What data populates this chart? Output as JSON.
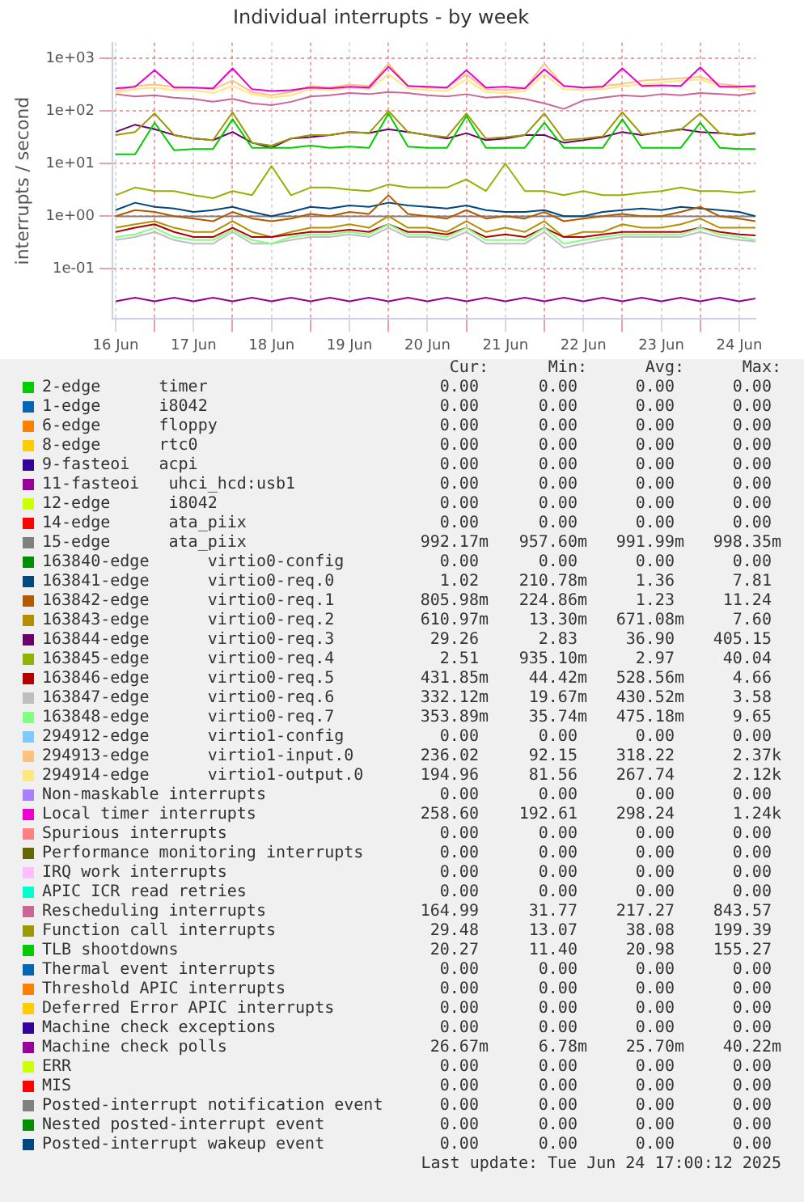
{
  "chart_data": {
    "type": "line",
    "title": "Individual interrupts - by week",
    "ylabel": "interrupts / second",
    "log": "y",
    "grid": true,
    "legend": "bottom",
    "marker": "none",
    "xlim": [
      "2025-06-16T11:00",
      "2025-06-24T17:00"
    ],
    "xticks": [
      {
        "value": "2025-06-16T12:00",
        "label": "16 Jun"
      },
      {
        "value": "2025-06-17T00:00",
        "label": null
      },
      {
        "value": "2025-06-17T12:00",
        "label": "17 Jun"
      },
      {
        "value": "2025-06-18T00:00",
        "label": null
      },
      {
        "value": "2025-06-18T12:00",
        "label": "18 Jun"
      },
      {
        "value": "2025-06-19T00:00",
        "label": null
      },
      {
        "value": "2025-06-19T12:00",
        "label": "19 Jun"
      },
      {
        "value": "2025-06-20T00:00",
        "label": null
      },
      {
        "value": "2025-06-20T12:00",
        "label": "20 Jun"
      },
      {
        "value": "2025-06-21T00:00",
        "label": null
      },
      {
        "value": "2025-06-21T12:00",
        "label": "21 Jun"
      },
      {
        "value": "2025-06-22T00:00",
        "label": null
      },
      {
        "value": "2025-06-22T12:00",
        "label": "22 Jun"
      },
      {
        "value": "2025-06-23T00:00",
        "label": null
      },
      {
        "value": "2025-06-23T12:00",
        "label": "23 Jun"
      },
      {
        "value": "2025-06-24T00:00",
        "label": null
      },
      {
        "value": "2025-06-24T12:00",
        "label": "24 Jun"
      }
    ],
    "ylim": [
      0.011,
      2000
    ],
    "yticks": [
      {
        "value": 1000,
        "label": "1e+03"
      },
      {
        "value": 100,
        "label": "1e+02"
      },
      {
        "value": 10,
        "label": "1e+01"
      },
      {
        "value": 1,
        "label": "1e+00"
      },
      {
        "value": 0.1,
        "label": "1e-01"
      }
    ],
    "x": [
      "2025-06-16T12:00",
      "2025-06-16T18:00",
      "2025-06-17T00:00",
      "2025-06-17T06:00",
      "2025-06-17T12:00",
      "2025-06-17T18:00",
      "2025-06-18T00:00",
      "2025-06-18T06:00",
      "2025-06-18T12:00",
      "2025-06-18T18:00",
      "2025-06-19T00:00",
      "2025-06-19T06:00",
      "2025-06-19T12:00",
      "2025-06-19T18:00",
      "2025-06-20T00:00",
      "2025-06-20T06:00",
      "2025-06-20T12:00",
      "2025-06-20T18:00",
      "2025-06-21T00:00",
      "2025-06-21T06:00",
      "2025-06-21T12:00",
      "2025-06-21T18:00",
      "2025-06-22T00:00",
      "2025-06-22T06:00",
      "2025-06-22T12:00",
      "2025-06-22T18:00",
      "2025-06-23T00:00",
      "2025-06-23T06:00",
      "2025-06-23T12:00",
      "2025-06-23T18:00",
      "2025-06-24T00:00",
      "2025-06-24T06:00",
      "2025-06-24T12:00",
      "2025-06-24T17:00"
    ],
    "series": [
      {
        "name": "2-edge      timer",
        "color": "#00cc00",
        "values": [
          null,
          null,
          null,
          null,
          null,
          null,
          null,
          null,
          null,
          null,
          null,
          null,
          null,
          null,
          null,
          null,
          null,
          null,
          null,
          null,
          null,
          null,
          null,
          null,
          null,
          null,
          null,
          null,
          null,
          null,
          null,
          null,
          null,
          null
        ]
      },
      {
        "name": "1-edge      i8042",
        "color": "#0066b3",
        "values": [
          null,
          null,
          null,
          null,
          null,
          null,
          null,
          null,
          null,
          null,
          null,
          null,
          null,
          null,
          null,
          null,
          null,
          null,
          null,
          null,
          null,
          null,
          null,
          null,
          null,
          null,
          null,
          null,
          null,
          null,
          null,
          null,
          null,
          null
        ]
      },
      {
        "name": "6-edge      floppy",
        "color": "#ff8000",
        "values": [
          null,
          null,
          null,
          null,
          null,
          null,
          null,
          null,
          null,
          null,
          null,
          null,
          null,
          null,
          null,
          null,
          null,
          null,
          null,
          null,
          null,
          null,
          null,
          null,
          null,
          null,
          null,
          null,
          null,
          null,
          null,
          null,
          null,
          null
        ]
      },
      {
        "name": "8-edge      rtc0",
        "color": "#ffcc00",
        "values": [
          null,
          null,
          null,
          null,
          null,
          null,
          null,
          null,
          null,
          null,
          null,
          null,
          null,
          null,
          null,
          null,
          null,
          null,
          null,
          null,
          null,
          null,
          null,
          null,
          null,
          null,
          null,
          null,
          null,
          null,
          null,
          null,
          null,
          null
        ]
      },
      {
        "name": "9-fasteoi   acpi",
        "color": "#330099",
        "values": [
          null,
          null,
          null,
          null,
          null,
          null,
          null,
          null,
          null,
          null,
          null,
          null,
          null,
          null,
          null,
          null,
          null,
          null,
          null,
          null,
          null,
          null,
          null,
          null,
          null,
          null,
          null,
          null,
          null,
          null,
          null,
          null,
          null,
          null
        ]
      },
      {
        "name": "11-fasteoi   uhci_hcd:usb1",
        "color": "#990099",
        "values": [
          null,
          null,
          null,
          null,
          null,
          null,
          null,
          null,
          null,
          null,
          null,
          null,
          null,
          null,
          null,
          null,
          null,
          null,
          null,
          null,
          null,
          null,
          null,
          null,
          null,
          null,
          null,
          null,
          null,
          null,
          null,
          null,
          null,
          null
        ]
      },
      {
        "name": "12-edge      i8042",
        "color": "#ccff00",
        "values": [
          null,
          null,
          null,
          null,
          null,
          null,
          null,
          null,
          null,
          null,
          null,
          null,
          null,
          null,
          null,
          null,
          null,
          null,
          null,
          null,
          null,
          null,
          null,
          null,
          null,
          null,
          null,
          null,
          null,
          null,
          null,
          null,
          null,
          null
        ]
      },
      {
        "name": "14-edge      ata_piix",
        "color": "#ff0000",
        "values": [
          null,
          null,
          null,
          null,
          null,
          null,
          null,
          null,
          null,
          null,
          null,
          null,
          null,
          null,
          null,
          null,
          null,
          null,
          null,
          null,
          null,
          null,
          null,
          null,
          null,
          null,
          null,
          null,
          null,
          null,
          null,
          null,
          null,
          null
        ]
      },
      {
        "name": "15-edge      ata_piix",
        "color": "#808080",
        "values": [
          0.99,
          0.99,
          0.99,
          0.99,
          0.99,
          0.99,
          0.99,
          0.99,
          0.99,
          0.99,
          0.99,
          0.99,
          0.99,
          0.99,
          0.99,
          0.99,
          0.99,
          0.99,
          0.99,
          0.99,
          0.99,
          0.99,
          0.99,
          0.99,
          0.99,
          0.99,
          0.99,
          0.99,
          0.99,
          0.99,
          0.99,
          0.99,
          0.99,
          0.99
        ]
      },
      {
        "name": "163840-edge      virtio0-config",
        "color": "#008f00",
        "values": [
          null,
          null,
          null,
          null,
          null,
          null,
          null,
          null,
          null,
          null,
          null,
          null,
          null,
          null,
          null,
          null,
          null,
          null,
          null,
          null,
          null,
          null,
          null,
          null,
          null,
          null,
          null,
          null,
          null,
          null,
          null,
          null,
          null,
          null
        ]
      },
      {
        "name": "163841-edge      virtio0-req.0",
        "color": "#00487d",
        "values": [
          1.3,
          1.8,
          1.5,
          1.4,
          1.2,
          1.3,
          1.5,
          1.2,
          1.0,
          1.2,
          1.5,
          1.4,
          1.6,
          1.5,
          1.8,
          1.6,
          1.5,
          1.4,
          1.6,
          1.3,
          1.2,
          1.2,
          1.3,
          1.0,
          1.0,
          1.2,
          1.3,
          1.4,
          1.3,
          1.5,
          1.4,
          1.3,
          1.2,
          1.0
        ]
      },
      {
        "name": "163842-edge      virtio0-req.1",
        "color": "#b35a00",
        "values": [
          1.0,
          1.3,
          1.2,
          1.0,
          0.9,
          0.8,
          1.2,
          0.9,
          0.8,
          0.9,
          1.1,
          1.0,
          1.2,
          1.1,
          2.5,
          1.1,
          1.0,
          0.9,
          1.3,
          0.9,
          1.0,
          0.9,
          1.2,
          0.8,
          0.9,
          1.0,
          1.1,
          1.0,
          1.0,
          1.2,
          1.5,
          1.0,
          0.9,
          0.8
        ]
      },
      {
        "name": "163843-edge      virtio0-req.2",
        "color": "#b38f00",
        "values": [
          0.6,
          0.7,
          0.8,
          0.6,
          0.5,
          0.5,
          0.8,
          0.5,
          0.4,
          0.5,
          0.6,
          0.6,
          0.7,
          0.6,
          1.0,
          0.6,
          0.6,
          0.5,
          0.8,
          0.5,
          0.6,
          0.5,
          0.8,
          0.4,
          0.5,
          0.5,
          0.7,
          0.6,
          0.6,
          0.7,
          0.9,
          0.6,
          0.6,
          0.6
        ]
      },
      {
        "name": "163844-edge      virtio0-req.3",
        "color": "#6b006b",
        "values": [
          40,
          55,
          45,
          35,
          30,
          28,
          40,
          25,
          20,
          30,
          32,
          35,
          40,
          38,
          45,
          40,
          35,
          30,
          38,
          28,
          30,
          35,
          35,
          25,
          28,
          32,
          40,
          35,
          40,
          45,
          40,
          38,
          35,
          38
        ]
      },
      {
        "name": "163845-edge      virtio0-req.4",
        "color": "#8fb300",
        "values": [
          2.5,
          3.5,
          3,
          3,
          2.5,
          2.2,
          3,
          2.5,
          9,
          2.5,
          3.5,
          3.5,
          3.2,
          3,
          4,
          3.5,
          3.5,
          3.5,
          5,
          3,
          10,
          3,
          3,
          2.5,
          3,
          2.5,
          2.5,
          2.8,
          3,
          3.5,
          3,
          3,
          2.8,
          3
        ]
      },
      {
        "name": "163846-edge      virtio0-req.5",
        "color": "#b30000",
        "values": [
          0.5,
          0.6,
          0.7,
          0.5,
          0.4,
          0.4,
          0.6,
          0.4,
          0.4,
          0.45,
          0.5,
          0.5,
          0.55,
          0.5,
          0.7,
          0.5,
          0.5,
          0.45,
          0.6,
          0.4,
          0.45,
          0.4,
          0.6,
          0.4,
          0.4,
          0.45,
          0.5,
          0.5,
          0.5,
          0.5,
          0.6,
          0.5,
          0.45,
          0.43
        ]
      },
      {
        "name": "163847-edge      virtio0-req.6",
        "color": "#bebebe",
        "values": [
          0.35,
          0.4,
          0.5,
          0.35,
          0.3,
          0.3,
          0.5,
          0.3,
          0.3,
          0.35,
          0.4,
          0.4,
          0.45,
          0.4,
          0.6,
          0.4,
          0.4,
          0.35,
          0.5,
          0.3,
          0.3,
          0.3,
          0.5,
          0.25,
          0.3,
          0.35,
          0.4,
          0.4,
          0.4,
          0.4,
          0.5,
          0.4,
          0.35,
          0.33
        ]
      },
      {
        "name": "163848-edge      virtio0-req.7",
        "color": "#80ff80",
        "values": [
          0.4,
          0.45,
          0.6,
          0.4,
          0.35,
          0.35,
          0.55,
          0.35,
          0.3,
          0.4,
          0.45,
          0.45,
          0.5,
          0.45,
          0.7,
          0.45,
          0.45,
          0.4,
          0.6,
          0.35,
          0.35,
          0.35,
          0.6,
          0.3,
          0.35,
          0.4,
          0.45,
          0.45,
          0.45,
          0.45,
          0.6,
          0.45,
          0.4,
          0.35
        ]
      },
      {
        "name": "294912-edge      virtio1-config",
        "color": "#80c9ff",
        "values": [
          null,
          null,
          null,
          null,
          null,
          null,
          null,
          null,
          null,
          null,
          null,
          null,
          null,
          null,
          null,
          null,
          null,
          null,
          null,
          null,
          null,
          null,
          null,
          null,
          null,
          null,
          null,
          null,
          null,
          null,
          null,
          null,
          null,
          null
        ]
      },
      {
        "name": "294913-edge      virtio1-input.0",
        "color": "#ffc080",
        "values": [
          240,
          300,
          320,
          290,
          280,
          260,
          380,
          230,
          200,
          230,
          300,
          280,
          320,
          300,
          800,
          300,
          280,
          280,
          500,
          260,
          250,
          270,
          800,
          300,
          280,
          300,
          330,
          380,
          400,
          420,
          450,
          330,
          300,
          280
        ]
      },
      {
        "name": "294914-edge      virtio1-output.0",
        "color": "#ffe680",
        "values": [
          220,
          260,
          280,
          250,
          250,
          220,
          300,
          210,
          180,
          200,
          260,
          250,
          280,
          260,
          500,
          270,
          250,
          240,
          400,
          230,
          220,
          240,
          500,
          260,
          250,
          260,
          300,
          320,
          350,
          380,
          400,
          300,
          270,
          240
        ]
      },
      {
        "name": "Non-maskable interrupts",
        "color": "#aa80ff",
        "values": [
          null,
          null,
          null,
          null,
          null,
          null,
          null,
          null,
          null,
          null,
          null,
          null,
          null,
          null,
          null,
          null,
          null,
          null,
          null,
          null,
          null,
          null,
          null,
          null,
          null,
          null,
          null,
          null,
          null,
          null,
          null,
          null,
          null,
          null
        ]
      },
      {
        "name": "Local timer interrupts",
        "color": "#ee00cc",
        "values": [
          270,
          290,
          600,
          280,
          280,
          270,
          650,
          260,
          240,
          250,
          280,
          270,
          290,
          280,
          700,
          300,
          290,
          280,
          600,
          280,
          290,
          270,
          620,
          300,
          280,
          290,
          650,
          300,
          310,
          300,
          680,
          290,
          290,
          300
        ]
      },
      {
        "name": "Spurious interrupts",
        "color": "#ff8080",
        "values": [
          null,
          null,
          null,
          null,
          null,
          null,
          null,
          null,
          null,
          null,
          null,
          null,
          null,
          null,
          null,
          null,
          null,
          null,
          null,
          null,
          null,
          null,
          null,
          null,
          null,
          null,
          null,
          null,
          null,
          null,
          null,
          null,
          null,
          null
        ]
      },
      {
        "name": "Performance monitoring interrupts",
        "color": "#666600",
        "values": [
          null,
          null,
          null,
          null,
          null,
          null,
          null,
          null,
          null,
          null,
          null,
          null,
          null,
          null,
          null,
          null,
          null,
          null,
          null,
          null,
          null,
          null,
          null,
          null,
          null,
          null,
          null,
          null,
          null,
          null,
          null,
          null,
          null,
          null
        ]
      },
      {
        "name": "IRQ work interrupts",
        "color": "#ffbfff",
        "values": [
          null,
          null,
          null,
          null,
          null,
          null,
          null,
          null,
          null,
          null,
          null,
          null,
          null,
          null,
          null,
          null,
          null,
          null,
          null,
          null,
          null,
          null,
          null,
          null,
          null,
          null,
          null,
          null,
          null,
          null,
          null,
          null,
          null,
          null
        ]
      },
      {
        "name": "APIC ICR read retries",
        "color": "#00ffcc",
        "values": [
          null,
          null,
          null,
          null,
          null,
          null,
          null,
          null,
          null,
          null,
          null,
          null,
          null,
          null,
          null,
          null,
          null,
          null,
          null,
          null,
          null,
          null,
          null,
          null,
          null,
          null,
          null,
          null,
          null,
          null,
          null,
          null,
          null,
          null
        ]
      },
      {
        "name": "Rescheduling interrupts",
        "color": "#cc6699",
        "values": [
          210,
          190,
          200,
          180,
          170,
          150,
          170,
          140,
          130,
          150,
          190,
          200,
          220,
          210,
          230,
          220,
          200,
          190,
          210,
          180,
          190,
          170,
          140,
          110,
          160,
          180,
          200,
          190,
          210,
          200,
          220,
          210,
          200,
          220
        ]
      },
      {
        "name": "Function call interrupts",
        "color": "#999900",
        "values": [
          35,
          40,
          90,
          35,
          30,
          28,
          95,
          25,
          22,
          30,
          35,
          35,
          40,
          38,
          100,
          40,
          35,
          32,
          90,
          30,
          32,
          35,
          90,
          28,
          30,
          33,
          95,
          36,
          40,
          44,
          90,
          38,
          35,
          37
        ]
      },
      {
        "name": "TLB shootdowns",
        "color": "#00cc00",
        "values": [
          15,
          15,
          60,
          18,
          19,
          19,
          70,
          20,
          20,
          20,
          22,
          20,
          21,
          20,
          90,
          21,
          20,
          20,
          80,
          20,
          20,
          20,
          60,
          20,
          20,
          20,
          70,
          20,
          20,
          20,
          60,
          20,
          19,
          19
        ]
      },
      {
        "name": "Thermal event interrupts",
        "color": "#0066b3",
        "values": [
          null,
          null,
          null,
          null,
          null,
          null,
          null,
          null,
          null,
          null,
          null,
          null,
          null,
          null,
          null,
          null,
          null,
          null,
          null,
          null,
          null,
          null,
          null,
          null,
          null,
          null,
          null,
          null,
          null,
          null,
          null,
          null,
          null,
          null
        ]
      },
      {
        "name": "Threshold APIC interrupts",
        "color": "#ff8000",
        "values": [
          null,
          null,
          null,
          null,
          null,
          null,
          null,
          null,
          null,
          null,
          null,
          null,
          null,
          null,
          null,
          null,
          null,
          null,
          null,
          null,
          null,
          null,
          null,
          null,
          null,
          null,
          null,
          null,
          null,
          null,
          null,
          null,
          null,
          null
        ]
      },
      {
        "name": "Deferred Error APIC interrupts",
        "color": "#ffcc00",
        "values": [
          null,
          null,
          null,
          null,
          null,
          null,
          null,
          null,
          null,
          null,
          null,
          null,
          null,
          null,
          null,
          null,
          null,
          null,
          null,
          null,
          null,
          null,
          null,
          null,
          null,
          null,
          null,
          null,
          null,
          null,
          null,
          null,
          null,
          null
        ]
      },
      {
        "name": "Machine check exceptions",
        "color": "#330099",
        "values": [
          null,
          null,
          null,
          null,
          null,
          null,
          null,
          null,
          null,
          null,
          null,
          null,
          null,
          null,
          null,
          null,
          null,
          null,
          null,
          null,
          null,
          null,
          null,
          null,
          null,
          null,
          null,
          null,
          null,
          null,
          null,
          null,
          null,
          null
        ]
      },
      {
        "name": "Machine check polls",
        "color": "#990099",
        "values": [
          0.024,
          0.028,
          0.024,
          0.028,
          0.024,
          0.028,
          0.024,
          0.028,
          0.024,
          0.028,
          0.024,
          0.028,
          0.024,
          0.028,
          0.024,
          0.028,
          0.024,
          0.028,
          0.024,
          0.028,
          0.024,
          0.028,
          0.024,
          0.028,
          0.024,
          0.028,
          0.024,
          0.028,
          0.024,
          0.028,
          0.024,
          0.028,
          0.024,
          0.027
        ]
      },
      {
        "name": "ERR",
        "color": "#ccff00",
        "values": [
          null,
          null,
          null,
          null,
          null,
          null,
          null,
          null,
          null,
          null,
          null,
          null,
          null,
          null,
          null,
          null,
          null,
          null,
          null,
          null,
          null,
          null,
          null,
          null,
          null,
          null,
          null,
          null,
          null,
          null,
          null,
          null,
          null,
          null
        ]
      },
      {
        "name": "MIS",
        "color": "#ff0000",
        "values": [
          null,
          null,
          null,
          null,
          null,
          null,
          null,
          null,
          null,
          null,
          null,
          null,
          null,
          null,
          null,
          null,
          null,
          null,
          null,
          null,
          null,
          null,
          null,
          null,
          null,
          null,
          null,
          null,
          null,
          null,
          null,
          null,
          null,
          null
        ]
      },
      {
        "name": "Posted-interrupt notification event",
        "color": "#808080",
        "values": [
          null,
          null,
          null,
          null,
          null,
          null,
          null,
          null,
          null,
          null,
          null,
          null,
          null,
          null,
          null,
          null,
          null,
          null,
          null,
          null,
          null,
          null,
          null,
          null,
          null,
          null,
          null,
          null,
          null,
          null,
          null,
          null,
          null,
          null
        ]
      },
      {
        "name": "Nested posted-interrupt event",
        "color": "#008f00",
        "values": [
          null,
          null,
          null,
          null,
          null,
          null,
          null,
          null,
          null,
          null,
          null,
          null,
          null,
          null,
          null,
          null,
          null,
          null,
          null,
          null,
          null,
          null,
          null,
          null,
          null,
          null,
          null,
          null,
          null,
          null,
          null,
          null,
          null,
          null
        ]
      },
      {
        "name": "Posted-interrupt wakeup event",
        "color": "#00487d",
        "values": [
          null,
          null,
          null,
          null,
          null,
          null,
          null,
          null,
          null,
          null,
          null,
          null,
          null,
          null,
          null,
          null,
          null,
          null,
          null,
          null,
          null,
          null,
          null,
          null,
          null,
          null,
          null,
          null,
          null,
          null,
          null,
          null,
          null,
          null
        ]
      }
    ],
    "annotations": [
      "Cur: Min: Avg: Max:",
      "0.00 0.00 0.00 0.00",
      "0.00 0.00 0.00 0.00",
      "0.00 0.00 0.00 0.00",
      "0.00 0.00 0.00 0.00",
      "0.00 0.00 0.00 0.00",
      "0.00 0.00 0.00 0.00",
      "0.00 0.00 0.00 0.00",
      "0.00 0.00 0.00 0.00",
      "992.17m 957.60m 991.99m 998.35m",
      "0.00 0.00 0.00 0.00",
      "1.02 210.78m 1.36 7.81",
      "805.98m 224.86m 1.23 11.24",
      "610.97m 13.30m 671.08m 7.60",
      "29.26 2.83 36.90 405.15",
      "2.51 935.10m 2.97 40.04",
      "431.85m 44.42m 528.56m 4.66",
      "332.12m 19.67m 430.52m 3.58",
      "353.89m 35.74m 475.18m 9.65",
      "0.00 0.00 0.00 0.00",
      "236.02 92.15 318.22 2.37k",
      "194.96 81.56 267.74 2.12k",
      "0.00 0.00 0.00 0.00",
      "258.60 192.61 298.24 1.24k",
      "0.00 0.00 0.00 0.00",
      "0.00 0.00 0.00 0.00",
      "0.00 0.00 0.00 0.00",
      "0.00 0.00 0.00 0.00",
      "164.99 31.77 217.27 843.57",
      "29.48 13.07 38.08 199.39",
      "20.27 11.40 20.98 155.27",
      "0.00 0.00 0.00 0.00",
      "0.00 0.00 0.00 0.00",
      "0.00 0.00 0.00 0.00",
      "0.00 0.00 0.00 0.00",
      "26.67m 6.78m 25.70m 40.22m",
      "0.00 0.00 0.00 0.00",
      "0.00 0.00 0.00 0.00",
      "0.00 0.00 0.00 0.00",
      "0.00 0.00 0.00 0.00",
      "0.00 0.00 0.00 0.00",
      "Last update: Tue Jun 24 17:00:12 2025"
    ]
  }
}
